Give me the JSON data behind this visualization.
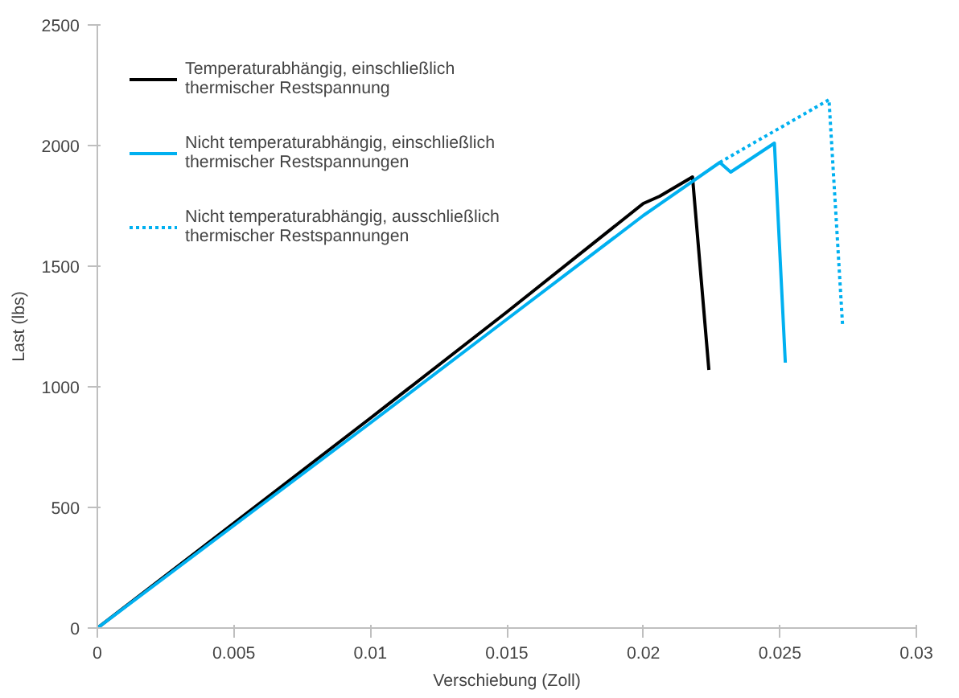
{
  "chart_data": {
    "type": "line",
    "xlabel": "Verschiebung (Zoll)",
    "ylabel": "Last (lbs)",
    "xlim": [
      0,
      0.03
    ],
    "ylim": [
      0,
      2500
    ],
    "xticks": [
      0,
      0.005,
      0.01,
      0.015,
      0.02,
      0.025,
      0.03
    ],
    "yticks": [
      0,
      500,
      1000,
      1500,
      2000,
      2500
    ],
    "grid": false,
    "legend": "top left",
    "marker": "none",
    "series": [
      {
        "name": "Temperaturabhängig, einschließlich thermischer Restspannung",
        "color": "#000000",
        "line_style": "solid",
        "x": [
          0,
          0.005,
          0.01,
          0.015,
          0.02,
          0.0206,
          0.0218,
          0.0224
        ],
        "values": [
          0,
          435,
          870,
          1310,
          1760,
          1790,
          1870,
          1070
        ]
      },
      {
        "name": "Nicht temperaturabhängig, einschließlich thermischer Restspannungen",
        "color": "#00b0f0",
        "line_style": "solid",
        "x": [
          0,
          0.005,
          0.01,
          0.015,
          0.02,
          0.0228,
          0.0232,
          0.0248,
          0.0252
        ],
        "values": [
          0,
          425,
          850,
          1280,
          1710,
          1930,
          1890,
          2010,
          1100
        ]
      },
      {
        "name": "Nicht temperaturabhängig, ausschließlich thermischer Restspannungen",
        "color": "#00b0f0",
        "line_style": "dotted",
        "x": [
          0.0228,
          0.0268,
          0.0273
        ],
        "values": [
          1930,
          2190,
          1250
        ]
      }
    ]
  }
}
